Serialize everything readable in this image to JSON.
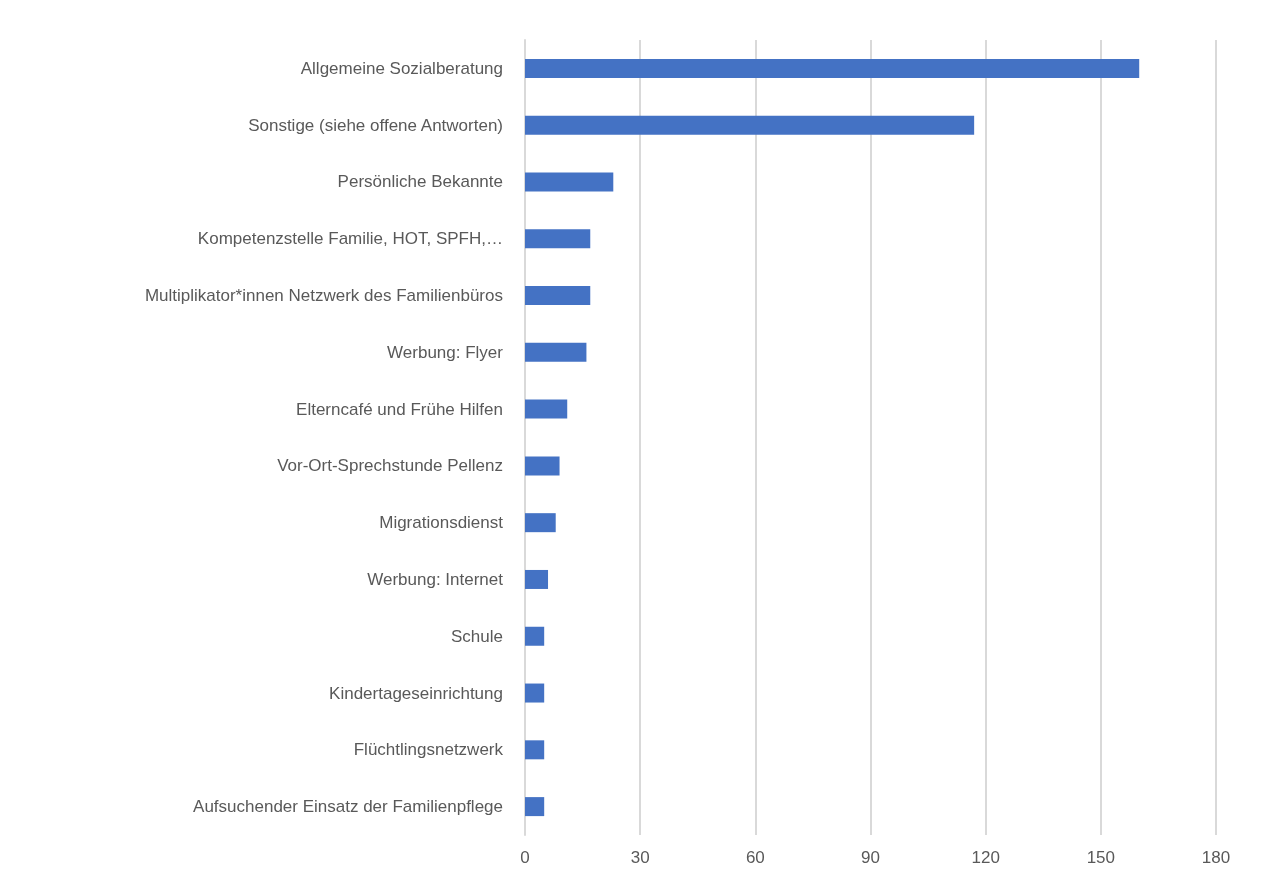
{
  "chart_data": {
    "type": "bar",
    "orientation": "horizontal",
    "categories": [
      "Allgemeine Sozialberatung",
      "Sonstige (siehe offene Antworten)",
      "Persönliche Bekannte",
      "Kompetenzstelle Familie, HOT, SPFH,…",
      "Multiplikator*innen Netzwerk des Familienbüros",
      "Werbung: Flyer",
      "Elterncafé und Frühe Hilfen",
      "Vor-Ort-Sprechstunde Pellenz",
      "Migrationsdienst",
      "Werbung: Internet",
      "Schule",
      "Kindertageseinrichtung",
      "Flüchtlingsnetzwerk",
      "Aufsuchender Einsatz der Familienpflege"
    ],
    "values": [
      160,
      117,
      23,
      17,
      17,
      16,
      11,
      9,
      8,
      6,
      5,
      5,
      5,
      5
    ],
    "color": "#4472c4",
    "xlim": [
      0,
      180
    ],
    "xticks": [
      0,
      30,
      60,
      90,
      120,
      150,
      180
    ],
    "grid": "x"
  }
}
